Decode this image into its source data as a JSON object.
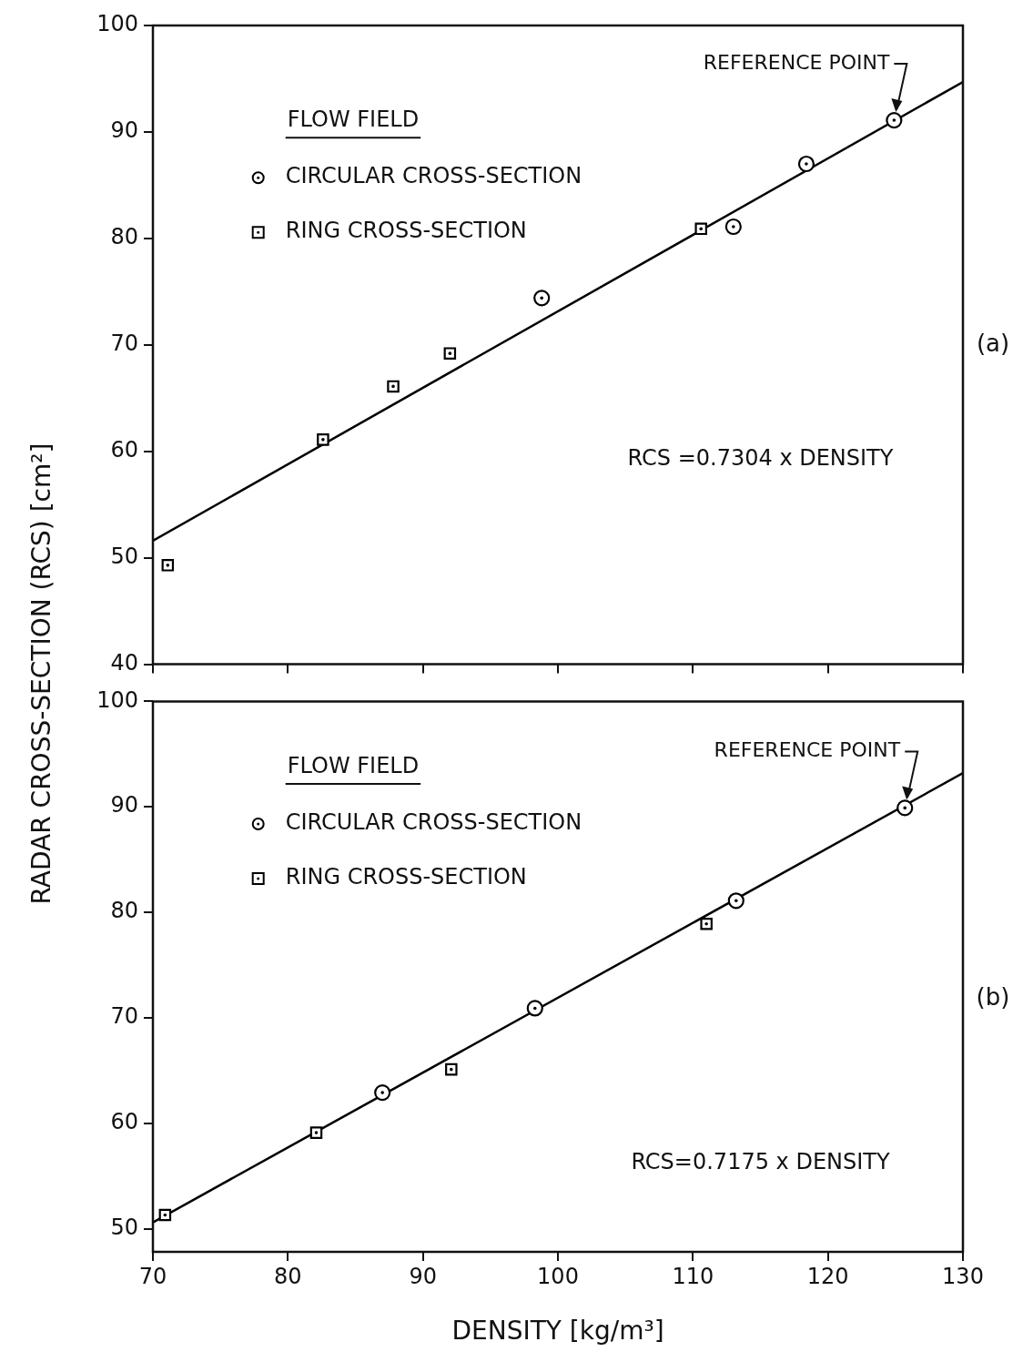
{
  "chart_data": [
    {
      "type": "scatter",
      "ylabel": "RADAR CROSS-SECTION (RCS) [cm²]",
      "legend_title": "FLOW FIELD",
      "legend": "top left",
      "tick_labels": "y",
      "xlim": [
        70,
        130
      ],
      "xticks": [
        {
          "value": 70,
          "label": null
        },
        {
          "value": 80,
          "label": null
        },
        {
          "value": 90,
          "label": null
        },
        {
          "value": 100,
          "label": null
        },
        {
          "value": 110,
          "label": null
        },
        {
          "value": 120,
          "label": null
        },
        {
          "value": 130,
          "label": null
        }
      ],
      "ylim": [
        40,
        100
      ],
      "yticks": [
        40,
        50,
        60,
        70,
        80,
        90,
        100
      ],
      "series": [
        {
          "name": "CIRCULAR CROSS-SECTION",
          "color": "#000000",
          "marker": "circle",
          "x": [
            98.8,
            113.0,
            118.4,
            124.9
          ],
          "values": [
            74.4,
            81.1,
            87.0,
            91.1
          ]
        },
        {
          "name": "RING CROSS-SECTION",
          "color": "#000000",
          "marker": "square",
          "x": [
            71.1,
            82.6,
            87.8,
            92.0,
            110.6
          ],
          "values": [
            49.3,
            61.1,
            66.1,
            69.2,
            80.9
          ]
        },
        {
          "type": "line",
          "color": "#000000",
          "marker": "none",
          "x": [
            70,
            130
          ],
          "values": [
            51.6,
            94.7
          ]
        }
      ],
      "annotations": [
        "(a)",
        {
          "text": "REFERENCE POINT",
          "x": 124.9,
          "y": 91.1
        },
        "RCS =0.7304 x DENSITY"
      ]
    },
    {
      "type": "scatter",
      "xlabel": "DENSITY [kg/m³]",
      "legend_title": "FLOW FIELD",
      "legend": "top left",
      "xlim": [
        70,
        130
      ],
      "xticks": [
        70,
        80,
        90,
        100,
        110,
        120,
        130
      ],
      "ylim": [
        47.8,
        100
      ],
      "yticks": [
        50,
        60,
        70,
        80,
        90,
        100
      ],
      "series": [
        {
          "name": "CIRCULAR CROSS-SECTION",
          "color": "#000000",
          "marker": "circle",
          "x": [
            87.0,
            98.3,
            113.2,
            125.7
          ],
          "values": [
            62.9,
            70.9,
            81.1,
            89.9
          ]
        },
        {
          "name": "RING CROSS-SECTION",
          "color": "#000000",
          "marker": "square",
          "x": [
            70.9,
            82.1,
            92.1,
            111.0
          ],
          "values": [
            51.3,
            59.1,
            65.1,
            78.9
          ]
        },
        {
          "type": "line",
          "color": "#000000",
          "marker": "none",
          "x": [
            70,
            130
          ],
          "values": [
            50.6,
            93.2
          ]
        }
      ],
      "annotations": [
        "(b)",
        {
          "text": "REFERENCE POINT",
          "x": 125.7,
          "y": 89.9
        },
        "RCS=0.7175 x DENSITY"
      ]
    }
  ]
}
